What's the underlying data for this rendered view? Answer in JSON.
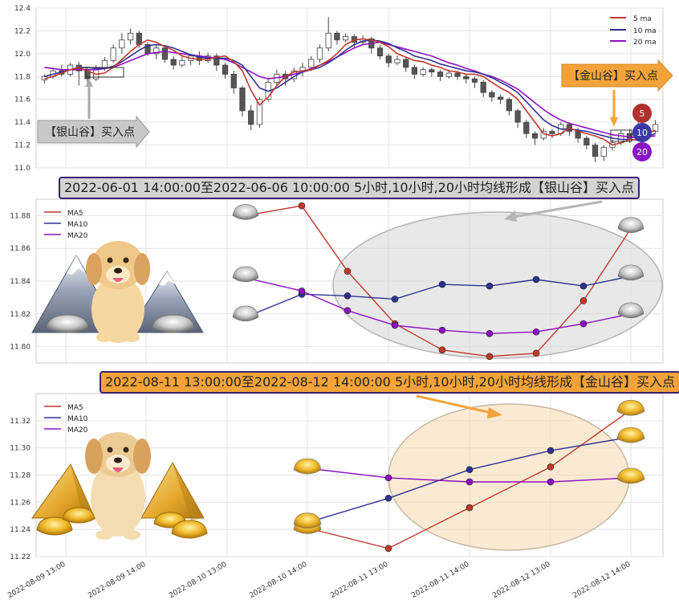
{
  "chart_data": [
    {
      "id": "overview",
      "type": "candlestick",
      "ylim": [
        11.0,
        12.4
      ],
      "yticks": [
        "11.0",
        "11.2",
        "11.4",
        "11.6",
        "11.8",
        "12.0",
        "12.2",
        "12.4"
      ],
      "legend": {
        "position": "top-right",
        "entries": [
          "5 ma",
          "10 ma",
          "20 ma"
        ]
      },
      "ma5": [
        11.78,
        11.8,
        11.83,
        11.86,
        11.88,
        11.85,
        11.82,
        11.83,
        11.88,
        11.95,
        12.02,
        12.08,
        12.12,
        12.1,
        12.06,
        12.03,
        11.98,
        11.96,
        11.95,
        11.95,
        11.97,
        11.98,
        11.93,
        11.85,
        11.68,
        11.55,
        11.62,
        11.72,
        11.8,
        11.84,
        11.85,
        11.86,
        11.9,
        11.94,
        12.0,
        12.08,
        12.12,
        12.13,
        12.12,
        12.1,
        12.06,
        12.0,
        11.97,
        11.94,
        11.93,
        11.9,
        11.88,
        11.85,
        11.84,
        11.82,
        11.82,
        11.8,
        11.75,
        11.7,
        11.66,
        11.6,
        11.5,
        11.4,
        11.3,
        11.28,
        11.3,
        11.35,
        11.32,
        11.3,
        11.28,
        11.25,
        11.2,
        11.22,
        11.25,
        11.24,
        11.3,
        11.33
      ],
      "ma10": [
        11.8,
        11.82,
        11.84,
        11.86,
        11.88,
        11.88,
        11.87,
        11.87,
        11.89,
        11.93,
        11.98,
        12.03,
        12.07,
        12.08,
        12.07,
        12.05,
        12.02,
        11.99,
        11.97,
        11.96,
        11.96,
        11.96,
        11.94,
        11.9,
        11.8,
        11.7,
        11.67,
        11.7,
        11.75,
        11.8,
        11.84,
        11.86,
        11.88,
        11.92,
        11.97,
        12.03,
        12.08,
        12.11,
        12.12,
        12.11,
        12.09,
        12.05,
        12.02,
        11.98,
        11.96,
        11.94,
        11.91,
        11.89,
        11.87,
        11.85,
        11.84,
        11.82,
        11.79,
        11.75,
        11.71,
        11.66,
        11.58,
        11.5,
        11.42,
        11.37,
        11.34,
        11.34,
        11.33,
        11.32,
        11.3,
        11.28,
        11.26,
        11.25,
        11.25,
        11.24,
        11.27,
        11.3
      ],
      "ma20": [
        11.88,
        11.87,
        11.86,
        11.86,
        11.86,
        11.86,
        11.86,
        11.87,
        11.88,
        11.91,
        11.94,
        11.97,
        12.0,
        12.01,
        12.02,
        12.01,
        12.0,
        11.99,
        11.98,
        11.97,
        11.96,
        11.95,
        11.92,
        11.88,
        11.84,
        11.8,
        11.78,
        11.79,
        11.8,
        11.82,
        11.84,
        11.87,
        11.9,
        11.93,
        11.97,
        12.01,
        12.05,
        12.08,
        12.09,
        12.1,
        12.08,
        12.06,
        12.04,
        12.02,
        12.0,
        11.98,
        11.95,
        11.92,
        11.9,
        11.87,
        11.85,
        11.82,
        11.8,
        11.77,
        11.73,
        11.69,
        11.63,
        11.57,
        11.51,
        11.46,
        11.42,
        11.39,
        11.37,
        11.35,
        11.33,
        11.31,
        11.29,
        11.28,
        11.27,
        11.26,
        11.27,
        11.28
      ],
      "candles": [
        [
          11.77,
          11.8,
          11.74,
          11.82
        ],
        [
          11.8,
          11.85,
          11.78,
          11.88
        ],
        [
          11.85,
          11.82,
          11.8,
          11.9
        ],
        [
          11.82,
          11.9,
          11.8,
          11.92
        ],
        [
          11.9,
          11.85,
          11.72,
          11.93
        ],
        [
          11.85,
          11.78,
          11.75,
          11.88
        ],
        [
          11.78,
          11.88,
          11.76,
          11.9
        ],
        [
          11.88,
          11.94,
          11.85,
          11.97
        ],
        [
          11.94,
          12.05,
          11.92,
          12.08
        ],
        [
          12.05,
          12.12,
          12.0,
          12.18
        ],
        [
          12.12,
          12.18,
          12.08,
          12.22
        ],
        [
          12.18,
          12.08,
          12.05,
          12.2
        ],
        [
          12.08,
          12.0,
          11.98,
          12.1
        ],
        [
          12.0,
          12.05,
          11.95,
          12.08
        ],
        [
          12.05,
          11.95,
          11.92,
          12.07
        ],
        [
          11.95,
          11.9,
          11.86,
          11.98
        ],
        [
          11.9,
          11.94,
          11.88,
          11.97
        ],
        [
          11.94,
          11.98,
          11.9,
          12.0
        ],
        [
          11.98,
          11.94,
          11.9,
          12.02
        ],
        [
          11.94,
          11.98,
          11.92,
          12.01
        ],
        [
          11.98,
          11.9,
          11.85,
          12.0
        ],
        [
          11.9,
          11.82,
          11.78,
          11.92
        ],
        [
          11.82,
          11.7,
          11.65,
          11.85
        ],
        [
          11.7,
          11.5,
          11.45,
          11.72
        ],
        [
          11.5,
          11.38,
          11.33,
          11.55
        ],
        [
          11.38,
          11.6,
          11.35,
          11.62
        ],
        [
          11.6,
          11.75,
          11.58,
          11.78
        ],
        [
          11.75,
          11.82,
          11.72,
          11.86
        ],
        [
          11.82,
          11.78,
          11.72,
          11.85
        ],
        [
          11.78,
          11.85,
          11.75,
          11.88
        ],
        [
          11.85,
          11.88,
          11.8,
          11.92
        ],
        [
          11.88,
          11.95,
          11.85,
          11.98
        ],
        [
          11.95,
          12.05,
          11.92,
          12.08
        ],
        [
          12.05,
          12.18,
          12.02,
          12.32
        ],
        [
          12.18,
          12.12,
          12.08,
          12.2
        ],
        [
          12.12,
          12.15,
          12.1,
          12.18
        ],
        [
          12.15,
          12.1,
          12.05,
          12.17
        ],
        [
          12.1,
          12.13,
          12.08,
          12.16
        ],
        [
          12.13,
          12.05,
          12.0,
          12.15
        ],
        [
          12.05,
          11.98,
          11.95,
          12.08
        ],
        [
          11.98,
          11.92,
          11.88,
          12.0
        ],
        [
          11.92,
          11.95,
          11.9,
          11.98
        ],
        [
          11.95,
          11.88,
          11.84,
          11.97
        ],
        [
          11.88,
          11.82,
          11.78,
          11.9
        ],
        [
          11.82,
          11.86,
          11.8,
          11.88
        ],
        [
          11.86,
          11.84,
          11.8,
          11.88
        ],
        [
          11.84,
          11.8,
          11.76,
          11.86
        ],
        [
          11.8,
          11.83,
          11.78,
          11.86
        ],
        [
          11.83,
          11.8,
          11.77,
          11.85
        ],
        [
          11.8,
          11.78,
          11.74,
          11.82
        ],
        [
          11.78,
          11.75,
          11.7,
          11.8
        ],
        [
          11.75,
          11.66,
          11.62,
          11.77
        ],
        [
          11.66,
          11.62,
          11.58,
          11.68
        ],
        [
          11.62,
          11.6,
          11.56,
          11.64
        ],
        [
          11.6,
          11.5,
          11.46,
          11.62
        ],
        [
          11.5,
          11.4,
          11.35,
          11.52
        ],
        [
          11.4,
          11.3,
          11.26,
          11.42
        ],
        [
          11.3,
          11.26,
          11.2,
          11.32
        ],
        [
          11.26,
          11.32,
          11.24,
          11.35
        ],
        [
          11.32,
          11.3,
          11.26,
          11.34
        ],
        [
          11.3,
          11.38,
          11.28,
          11.4
        ],
        [
          11.38,
          11.32,
          11.28,
          11.4
        ],
        [
          11.32,
          11.26,
          11.22,
          11.35
        ],
        [
          11.26,
          11.2,
          11.16,
          11.28
        ],
        [
          11.2,
          11.1,
          11.05,
          11.22
        ],
        [
          11.1,
          11.18,
          11.06,
          11.2
        ],
        [
          11.18,
          11.22,
          11.15,
          11.25
        ],
        [
          11.22,
          11.3,
          11.2,
          11.33
        ],
        [
          11.3,
          11.26,
          11.22,
          11.34
        ],
        [
          11.26,
          11.34,
          11.24,
          11.4
        ],
        [
          11.34,
          11.32,
          11.28,
          11.38
        ],
        [
          11.32,
          11.38,
          11.3,
          11.42
        ]
      ],
      "badges": [
        "5",
        "10",
        "20"
      ],
      "colors": {
        "ma5": "#c0392b",
        "ma10": "#2e3192",
        "ma20": "#8e10c0",
        "bull": "#ffffff",
        "bear": "#555555"
      },
      "annotations": {
        "silver_arrow_label": "【银山谷】买入点",
        "gold_arrow_label": "【金山谷】买入点"
      }
    },
    {
      "id": "silver-valley",
      "type": "line",
      "title": "2022-06-01 14:00:00至2022-06-06 10:00:00 5小时,10小时,20小时均线形成【银山谷】买入点",
      "ylim": [
        11.79,
        11.89
      ],
      "yticks": [
        "11.80",
        "11.82",
        "11.84",
        "11.86",
        "11.88"
      ],
      "legend": {
        "position": "top-left",
        "entries": [
          "MA5",
          "MA10",
          "MA20"
        ]
      },
      "x": [
        0,
        1,
        2,
        3,
        4,
        5,
        6,
        7,
        8,
        9
      ],
      "series": [
        {
          "name": "MA5",
          "color": "#c0392b",
          "values": [
            11.88,
            11.886,
            11.846,
            11.814,
            11.798,
            11.794,
            11.796,
            11.828,
            11.872,
            null
          ]
        },
        {
          "name": "MA10",
          "color": "#2e3192",
          "values": [
            11.818,
            11.832,
            11.831,
            11.829,
            11.838,
            11.837,
            11.841,
            11.837,
            11.843,
            null
          ]
        },
        {
          "name": "MA20",
          "color": "#8e10c0",
          "values": [
            11.842,
            11.834,
            11.822,
            11.813,
            11.81,
            11.808,
            11.809,
            11.814,
            11.82,
            null
          ]
        }
      ]
    },
    {
      "id": "gold-valley",
      "type": "line",
      "title": "2022-08-11 13:00:00至2022-08-12 14:00:00 5小时,10小时,20小时均线形成【金山谷】买入点",
      "ylim": [
        11.22,
        11.34
      ],
      "yticks": [
        "11.22",
        "11.24",
        "11.26",
        "11.28",
        "11.30",
        "11.32"
      ],
      "legend": {
        "position": "top-left",
        "entries": [
          "MA5",
          "MA10",
          "MA20"
        ]
      },
      "x": [
        "2022-08-09 13:00",
        "2022-08-09 14:00",
        "2022-08-10 13:00",
        "2022-08-10 14:00",
        "2022-08-11 13:00",
        "2022-08-11 14:00",
        "2022-08-12 13:00",
        "2022-08-12 14:00"
      ],
      "series": [
        {
          "name": "MA5",
          "color": "#c0392b",
          "values": [
            null,
            null,
            null,
            11.241,
            11.226,
            11.256,
            11.286,
            11.328
          ]
        },
        {
          "name": "MA10",
          "color": "#2e3192",
          "values": [
            null,
            null,
            null,
            11.245,
            11.263,
            11.284,
            11.298,
            11.308
          ]
        },
        {
          "name": "MA20",
          "color": "#8e10c0",
          "values": [
            null,
            null,
            null,
            11.285,
            11.278,
            11.275,
            11.275,
            11.278
          ]
        }
      ]
    }
  ]
}
